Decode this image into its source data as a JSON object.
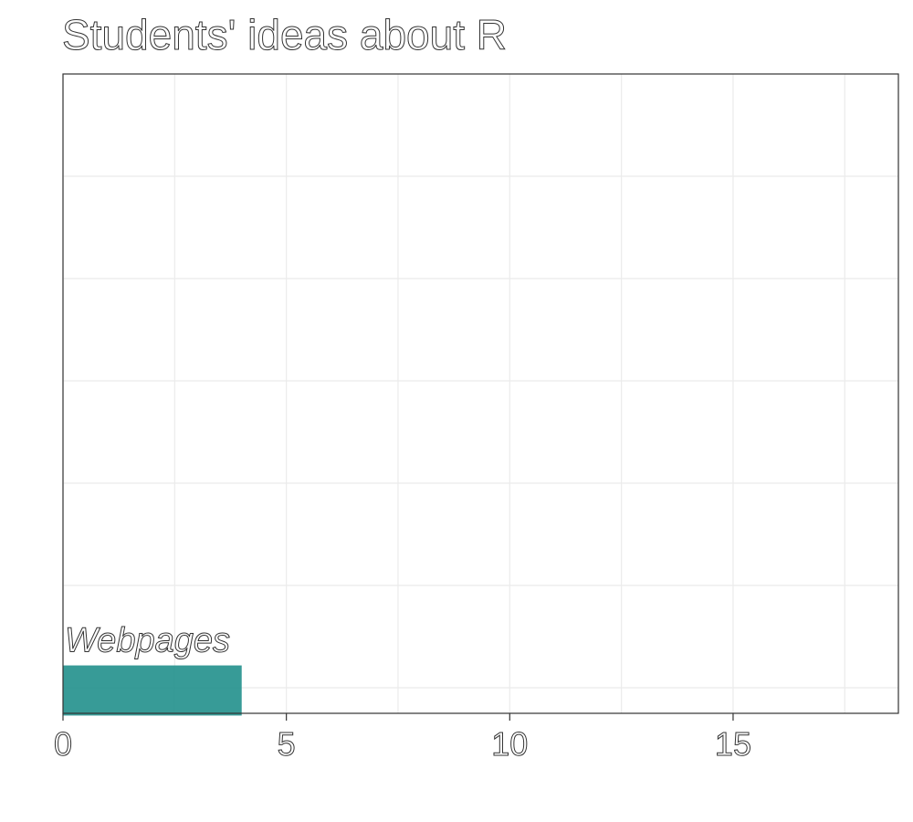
{
  "chart_data": {
    "type": "bar",
    "orientation": "horizontal",
    "title": "Students' ideas about R",
    "xlabel": "",
    "ylabel": "",
    "xlim": [
      0,
      18.7
    ],
    "x_ticks": [
      "0",
      "5",
      "10",
      "15"
    ],
    "y_category_slots": 6,
    "categories": [
      "Webpages"
    ],
    "values": [
      4
    ],
    "bar_label_position": "above-bar",
    "grid": true,
    "legend": "none",
    "colors": {
      "bar": "#21908C",
      "panel_border": "#333333",
      "grid": "#EBEBEB",
      "text_stroke": "#333333",
      "background": "#FFFFFF"
    }
  }
}
